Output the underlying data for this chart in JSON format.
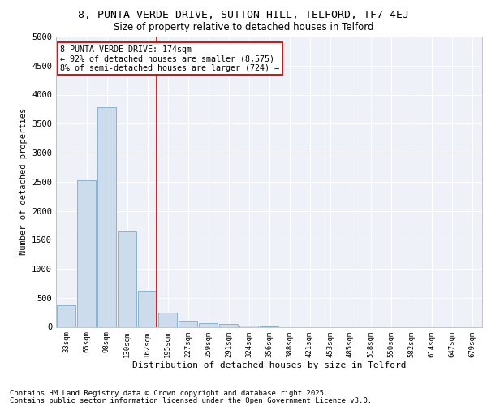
{
  "title1": "8, PUNTA VERDE DRIVE, SUTTON HILL, TELFORD, TF7 4EJ",
  "title2": "Size of property relative to detached houses in Telford",
  "xlabel": "Distribution of detached houses by size in Telford",
  "ylabel": "Number of detached properties",
  "bin_labels": [
    "33sqm",
    "65sqm",
    "98sqm",
    "130sqm",
    "162sqm",
    "195sqm",
    "227sqm",
    "259sqm",
    "291sqm",
    "324sqm",
    "356sqm",
    "388sqm",
    "421sqm",
    "453sqm",
    "485sqm",
    "518sqm",
    "550sqm",
    "582sqm",
    "614sqm",
    "647sqm",
    "679sqm"
  ],
  "bar_values": [
    370,
    2530,
    3780,
    1650,
    620,
    240,
    100,
    60,
    45,
    25,
    5,
    0,
    0,
    0,
    0,
    0,
    0,
    0,
    0,
    0,
    0
  ],
  "highlight_bin_index": 4,
  "bar_color": "#ccdcec",
  "bar_edge_color": "#7faac8",
  "line_color": "#cc0000",
  "annotation_text": "8 PUNTA VERDE DRIVE: 174sqm\n← 92% of detached houses are smaller (8,575)\n8% of semi-detached houses are larger (724) →",
  "annotation_box_color": "#ffffff",
  "annotation_box_edge": "#cc0000",
  "footer1": "Contains HM Land Registry data © Crown copyright and database right 2025.",
  "footer2": "Contains public sector information licensed under the Open Government Licence v3.0.",
  "ylim": [
    0,
    5000
  ],
  "yticks": [
    0,
    500,
    1000,
    1500,
    2000,
    2500,
    3000,
    3500,
    4000,
    4500,
    5000
  ],
  "bg_color": "#eef2f8",
  "title1_fontsize": 9.5,
  "title2_fontsize": 8.5,
  "footer_fontsize": 6.5
}
